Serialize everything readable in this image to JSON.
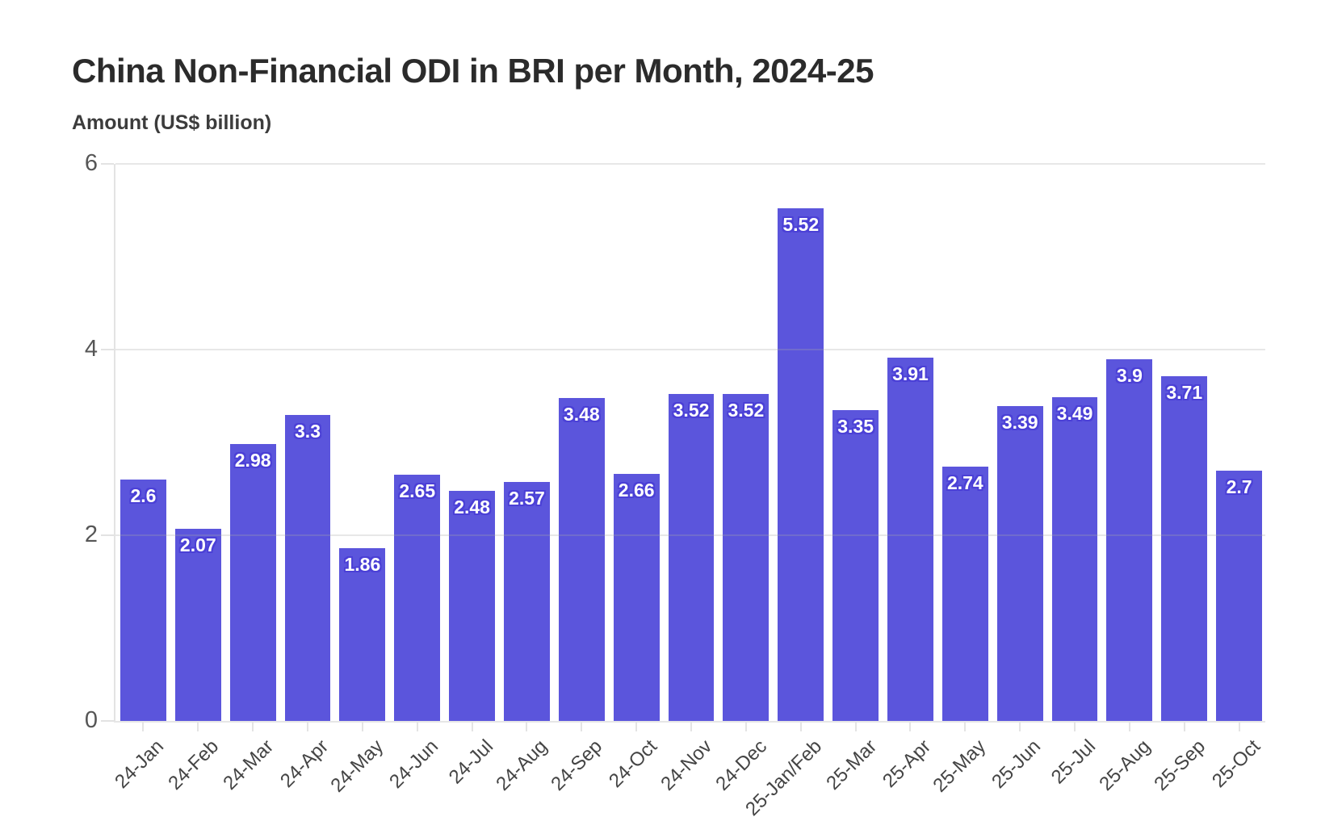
{
  "header": {
    "title": "China Non-Financial ODI in BRI per Month, 2024-25"
  },
  "chart_data": {
    "type": "bar",
    "title": "China Non-Financial ODI in BRI per Month, 2024-25",
    "y_axis_title": "Amount (US$ billion)",
    "categories": [
      "24-Jan",
      "24-Feb",
      "24-Mar",
      "24-Apr",
      "24-May",
      "24-Jun",
      "24-Jul",
      "24-Aug",
      "24-Sep",
      "24-Oct",
      "24-Nov",
      "24-Dec",
      "25-Jan/Feb",
      "25-Mar",
      "25-Apr",
      "25-May",
      "25-Jun",
      "25-Jul",
      "25-Aug",
      "25-Sep",
      "25-Oct"
    ],
    "values": [
      2.6,
      2.07,
      2.98,
      3.3,
      1.86,
      2.65,
      2.48,
      2.57,
      3.48,
      2.66,
      3.52,
      3.52,
      5.52,
      3.35,
      3.91,
      2.74,
      3.39,
      3.49,
      3.9,
      3.71,
      2.7
    ],
    "value_labels": [
      "2.6",
      "2.07",
      "2.98",
      "3.3",
      "1.86",
      "2.65",
      "2.48",
      "2.57",
      "3.48",
      "2.66",
      "3.52",
      "3.52",
      "5.52",
      "3.35",
      "3.91",
      "2.74",
      "3.39",
      "3.49",
      "3.9",
      "3.71",
      "2.7"
    ],
    "ylim": [
      0,
      6
    ],
    "yticks": [
      0,
      2,
      4,
      6
    ],
    "grid": "horizontal",
    "legend": "none",
    "colors": {
      "bar_fill": "#5B55DC",
      "bar_label_text": "#ffffff",
      "bar_label_outline": "#4B40D6",
      "title_text": "#2b2b2b",
      "axis_label_text": "#454545",
      "gridline": "#ececec"
    }
  }
}
